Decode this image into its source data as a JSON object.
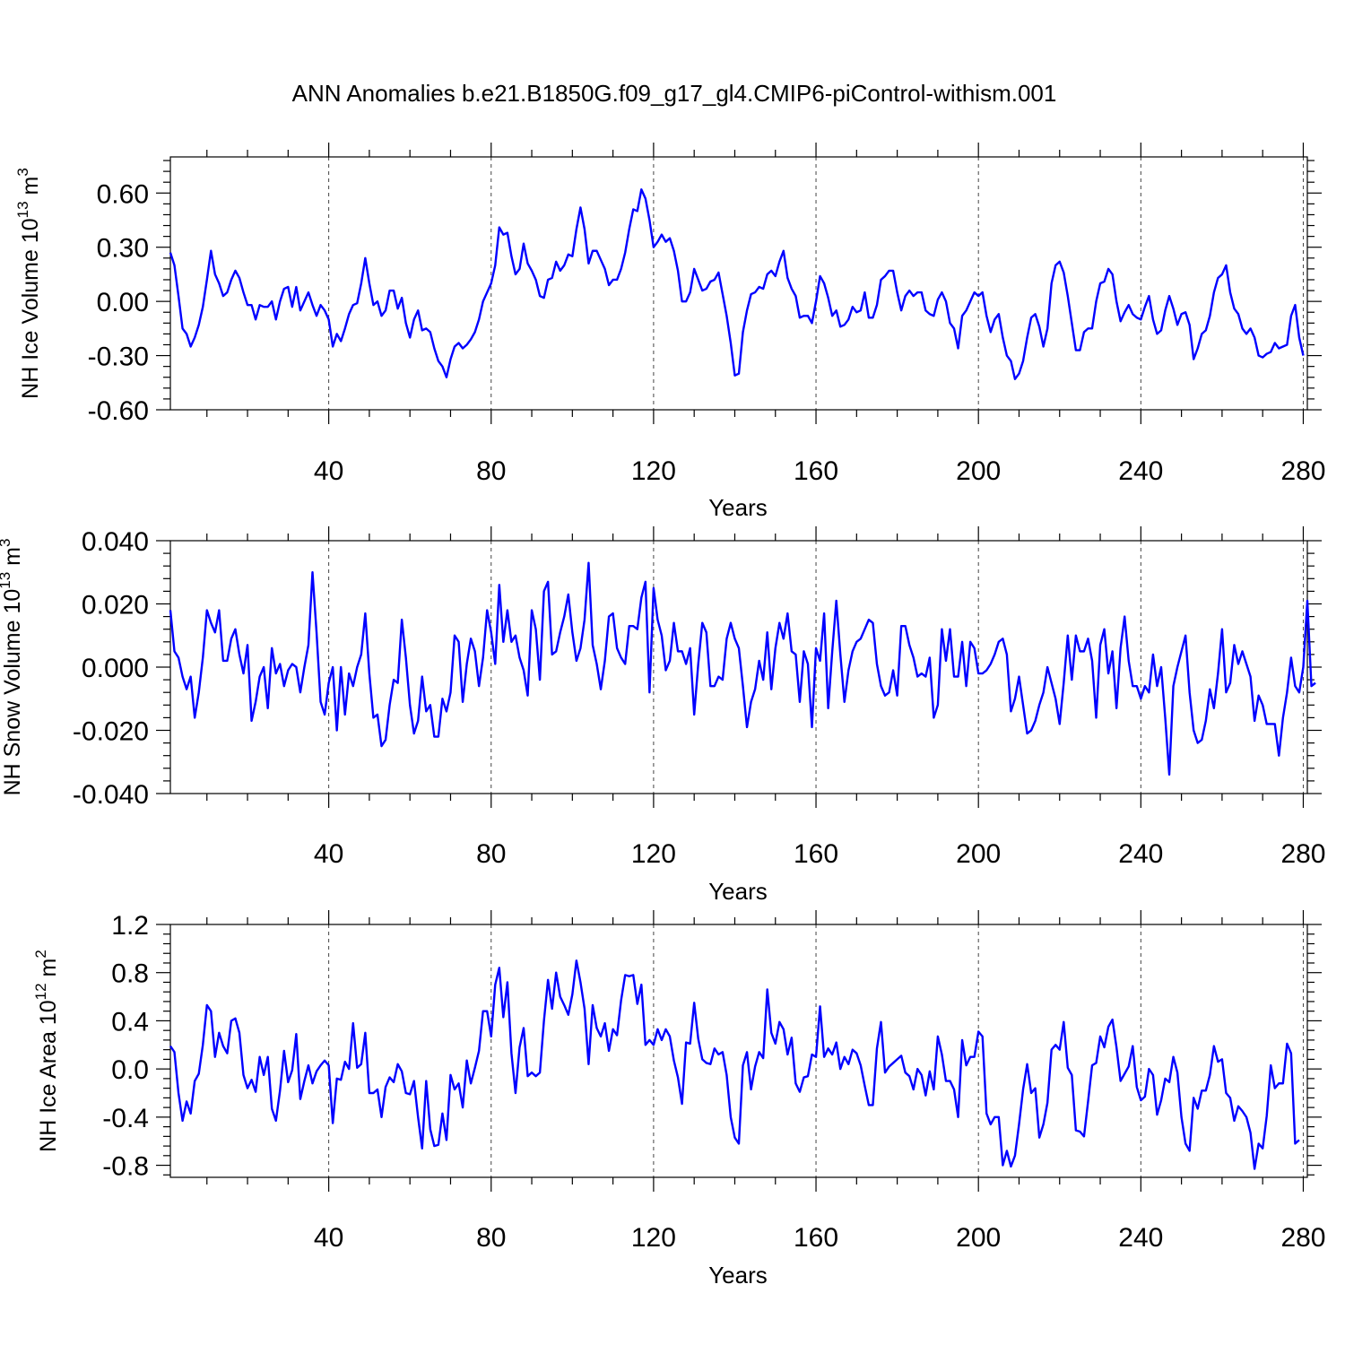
{
  "figure_title": "ANN Anomalies b.e21.B1850G.f09_g17_gl4.CMIP6-piControl-withism.001",
  "line_color": "#0000ff",
  "chart_data": [
    {
      "type": "line",
      "ylabel_main": "NH Ice Volume 10",
      "ylabel_sup": "13",
      "ylabel_unit": " m",
      "ylabel_unit_sup": "3",
      "xlabel": "Years",
      "xlim": [
        1,
        281
      ],
      "ylim": [
        -0.6,
        0.8
      ],
      "xticks": [
        40,
        80,
        120,
        160,
        200,
        240,
        280
      ],
      "xtick_labels": [
        "40",
        "80",
        "120",
        "160",
        "200",
        "240",
        "280"
      ],
      "yticks": [
        -0.6,
        -0.3,
        0.0,
        0.3,
        0.6
      ],
      "ytick_labels": [
        "-0.60",
        "-0.30",
        "0.00",
        "0.30",
        "0.60"
      ],
      "grid": "vertical dashed at x ticks",
      "series": [
        {
          "x_start": 1,
          "values": [
            0.27,
            0.2,
            0.03,
            -0.15,
            -0.18,
            -0.25,
            -0.2,
            -0.13,
            -0.03,
            0.12,
            0.28,
            0.15,
            0.1,
            0.03,
            0.05,
            0.12,
            0.17,
            0.13,
            0.05,
            -0.02,
            -0.02,
            -0.1,
            -0.02,
            -0.03,
            -0.03,
            0.0,
            -0.1,
            0.0,
            0.07,
            0.08,
            -0.03,
            0.08,
            -0.05,
            0.0,
            0.05,
            -0.02,
            -0.08,
            -0.02,
            -0.05,
            -0.1,
            -0.25,
            -0.18,
            -0.22,
            -0.15,
            -0.07,
            -0.02,
            -0.01,
            0.1,
            0.24,
            0.1,
            -0.02,
            0.0,
            -0.08,
            -0.05,
            0.06,
            0.06,
            -0.04,
            0.02,
            -0.12,
            -0.2,
            -0.1,
            -0.05,
            -0.16,
            -0.15,
            -0.17,
            -0.26,
            -0.33,
            -0.36,
            -0.42,
            -0.32,
            -0.25,
            -0.23,
            -0.26,
            -0.24,
            -0.21,
            -0.17,
            -0.1,
            0.0,
            0.05,
            0.1,
            0.2,
            0.41,
            0.37,
            0.38,
            0.25,
            0.15,
            0.18,
            0.32,
            0.21,
            0.17,
            0.12,
            0.03,
            0.02,
            0.12,
            0.13,
            0.22,
            0.17,
            0.2,
            0.26,
            0.25,
            0.4,
            0.52,
            0.4,
            0.21,
            0.28,
            0.28,
            0.23,
            0.18,
            0.09,
            0.12,
            0.12,
            0.18,
            0.27,
            0.4,
            0.51,
            0.5,
            0.62,
            0.57,
            0.45,
            0.3,
            0.33,
            0.37,
            0.33,
            0.35,
            0.28,
            0.17,
            0.0,
            0.0,
            0.05,
            0.18,
            0.12,
            0.06,
            0.07,
            0.11,
            0.12,
            0.16,
            0.04,
            -0.08,
            -0.23,
            -0.41,
            -0.4,
            -0.17,
            -0.05,
            0.04,
            0.05,
            0.08,
            0.07,
            0.15,
            0.17,
            0.14,
            0.22,
            0.28,
            0.13,
            0.07,
            0.03,
            -0.09,
            -0.08,
            -0.08,
            -0.12,
            0.0,
            0.14,
            0.1,
            0.02,
            -0.08,
            -0.05,
            -0.14,
            -0.13,
            -0.1,
            -0.03,
            -0.06,
            -0.05,
            0.05,
            -0.09,
            -0.09,
            -0.02,
            0.12,
            0.14,
            0.17,
            0.17,
            0.05,
            -0.05,
            0.03,
            0.06,
            0.03,
            0.05,
            0.05,
            -0.05,
            -0.07,
            -0.08,
            0.01,
            0.05,
            0.0,
            -0.12,
            -0.15,
            -0.26,
            -0.08,
            -0.05,
            0.0,
            0.05,
            0.03,
            0.05,
            -0.08,
            -0.17,
            -0.1,
            -0.07,
            -0.2,
            -0.3,
            -0.33,
            -0.43,
            -0.4,
            -0.33,
            -0.2,
            -0.09,
            -0.07,
            -0.14,
            -0.25,
            -0.15,
            0.1,
            0.2,
            0.22,
            0.16,
            0.03,
            -0.12,
            -0.27,
            -0.27,
            -0.17,
            -0.15,
            -0.15,
            0.0,
            0.1,
            0.11,
            0.18,
            0.15,
            0.0,
            -0.11,
            -0.06,
            -0.02,
            -0.07,
            -0.09,
            -0.1,
            -0.03,
            0.03,
            -0.1,
            -0.18,
            -0.16,
            -0.05,
            0.03,
            -0.04,
            -0.13,
            -0.07,
            -0.06,
            -0.13,
            -0.32,
            -0.26,
            -0.18,
            -0.16,
            -0.08,
            0.05,
            0.13,
            0.15,
            0.2,
            0.05,
            -0.04,
            -0.07,
            -0.15,
            -0.18,
            -0.15,
            -0.2,
            -0.3,
            -0.31,
            -0.29,
            -0.28,
            -0.23,
            -0.26,
            -0.25,
            -0.24,
            -0.08,
            -0.02,
            -0.2,
            -0.3
          ]
        }
      ]
    },
    {
      "type": "line",
      "ylabel_main": "NH Snow Volume 10",
      "ylabel_sup": "13",
      "ylabel_unit": " m",
      "ylabel_unit_sup": "3",
      "xlabel": "Years",
      "xlim": [
        1,
        281
      ],
      "ylim": [
        -0.04,
        0.04
      ],
      "xticks": [
        40,
        80,
        120,
        160,
        200,
        240,
        280
      ],
      "xtick_labels": [
        "40",
        "80",
        "120",
        "160",
        "200",
        "240",
        "280"
      ],
      "yticks": [
        -0.04,
        -0.02,
        0.0,
        0.02,
        0.04
      ],
      "ytick_labels": [
        "-0.040",
        "-0.020",
        "0.000",
        "0.020",
        "0.040"
      ],
      "grid": "vertical dashed at x ticks",
      "series": [
        {
          "x_start": 1,
          "values": [
            0.018,
            0.005,
            0.003,
            -0.003,
            -0.007,
            -0.003,
            -0.016,
            -0.008,
            0.003,
            0.018,
            0.014,
            0.011,
            0.018,
            0.002,
            0.002,
            0.009,
            0.012,
            0.004,
            -0.002,
            0.007,
            -0.017,
            -0.011,
            -0.003,
            0.0,
            -0.013,
            0.006,
            -0.002,
            0.001,
            -0.006,
            -0.001,
            0.001,
            0.0,
            -0.008,
            0.0,
            0.007,
            0.03,
            0.011,
            -0.011,
            -0.015,
            -0.005,
            0.0,
            -0.02,
            0.0,
            -0.015,
            -0.002,
            -0.006,
            0.0,
            0.004,
            0.017,
            -0.002,
            -0.016,
            -0.015,
            -0.025,
            -0.023,
            -0.012,
            -0.004,
            -0.005,
            0.015,
            0.003,
            -0.012,
            -0.021,
            -0.017,
            -0.003,
            -0.014,
            -0.012,
            -0.022,
            -0.022,
            -0.01,
            -0.014,
            -0.008,
            0.01,
            0.008,
            -0.011,
            0.001,
            0.009,
            0.005,
            -0.006,
            0.003,
            0.018,
            0.011,
            0.001,
            0.026,
            0.008,
            0.018,
            0.008,
            0.01,
            0.003,
            -0.001,
            -0.009,
            0.018,
            0.012,
            -0.004,
            0.024,
            0.027,
            0.004,
            0.005,
            0.011,
            0.016,
            0.023,
            0.011,
            0.002,
            0.006,
            0.015,
            0.033,
            0.007,
            0.001,
            -0.007,
            0.002,
            0.016,
            0.017,
            0.006,
            0.003,
            0.001,
            0.013,
            0.013,
            0.012,
            0.022,
            0.027,
            -0.008,
            0.025,
            0.015,
            0.01,
            -0.001,
            0.002,
            0.014,
            0.005,
            0.005,
            0.001,
            0.006,
            -0.015,
            0.001,
            0.014,
            0.011,
            -0.006,
            -0.006,
            -0.003,
            -0.004,
            0.009,
            0.014,
            0.009,
            0.006,
            -0.006,
            -0.019,
            -0.011,
            -0.007,
            0.002,
            -0.004,
            0.011,
            -0.007,
            0.006,
            0.014,
            0.009,
            0.017,
            0.005,
            0.004,
            -0.011,
            0.005,
            0.001,
            -0.019,
            0.006,
            0.002,
            0.017,
            -0.013,
            0.005,
            0.021,
            0.004,
            -0.011,
            -0.001,
            0.005,
            0.008,
            0.009,
            0.012,
            0.015,
            0.014,
            0.001,
            -0.006,
            -0.009,
            -0.008,
            -0.001,
            -0.009,
            0.013,
            0.013,
            0.007,
            0.003,
            -0.003,
            -0.002,
            -0.003,
            0.003,
            -0.016,
            -0.012,
            0.012,
            0.002,
            0.012,
            -0.003,
            -0.003,
            0.008,
            -0.006,
            0.008,
            0.006,
            -0.002,
            -0.002,
            -0.001,
            0.001,
            0.004,
            0.008,
            0.009,
            0.004,
            -0.014,
            -0.01,
            -0.003,
            -0.012,
            -0.021,
            -0.02,
            -0.017,
            -0.012,
            -0.008,
            0.0,
            -0.005,
            -0.01,
            -0.018,
            -0.005,
            0.01,
            -0.004,
            0.01,
            0.005,
            0.005,
            0.009,
            0.002,
            -0.016,
            0.007,
            0.012,
            -0.002,
            0.005,
            -0.013,
            0.006,
            0.016,
            0.002,
            -0.006,
            -0.006,
            -0.01,
            -0.006,
            -0.008,
            0.004,
            -0.006,
            0.0,
            -0.016,
            -0.034,
            -0.006,
            0.0,
            0.005,
            0.01,
            -0.008,
            -0.02,
            -0.024,
            -0.023,
            -0.017,
            -0.007,
            -0.013,
            -0.002,
            0.012,
            -0.008,
            -0.005,
            0.007,
            0.001,
            0.005,
            0.001,
            -0.003,
            -0.017,
            -0.009,
            -0.012,
            -0.018,
            -0.018,
            -0.018,
            -0.028,
            -0.016,
            -0.008,
            0.003,
            -0.006,
            -0.008,
            0.0,
            0.021,
            -0.006,
            -0.005
          ]
        }
      ]
    },
    {
      "type": "line",
      "ylabel_main": "NH Ice Area 10",
      "ylabel_sup": "12",
      "ylabel_unit": " m",
      "ylabel_unit_sup": "2",
      "xlabel": "Years",
      "xlim": [
        1,
        281
      ],
      "ylim": [
        -0.9,
        1.2
      ],
      "xticks": [
        40,
        80,
        120,
        160,
        200,
        240,
        280
      ],
      "xtick_labels": [
        "40",
        "80",
        "120",
        "160",
        "200",
        "240",
        "280"
      ],
      "yticks": [
        -0.8,
        -0.4,
        0.0,
        0.4,
        0.8,
        1.2
      ],
      "ytick_labels": [
        "-0.8",
        "-0.4",
        "0.0",
        "0.4",
        "0.8",
        "1.2"
      ],
      "grid": "vertical dashed at x ticks",
      "series": [
        {
          "x_start": 1,
          "values": [
            0.19,
            0.14,
            -0.2,
            -0.43,
            -0.27,
            -0.37,
            -0.1,
            -0.04,
            0.2,
            0.53,
            0.48,
            0.1,
            0.3,
            0.19,
            0.13,
            0.4,
            0.42,
            0.3,
            -0.05,
            -0.16,
            -0.09,
            -0.19,
            0.1,
            -0.05,
            0.1,
            -0.33,
            -0.43,
            -0.18,
            0.15,
            -0.11,
            -0.01,
            0.29,
            -0.25,
            -0.1,
            0.03,
            -0.12,
            -0.02,
            0.03,
            0.07,
            0.03,
            -0.45,
            -0.08,
            -0.09,
            0.06,
            0.0,
            0.38,
            0.01,
            0.04,
            0.3,
            -0.2,
            -0.2,
            -0.17,
            -0.4,
            -0.15,
            -0.07,
            -0.11,
            0.04,
            -0.02,
            -0.2,
            -0.21,
            -0.1,
            -0.4,
            -0.66,
            -0.1,
            -0.5,
            -0.64,
            -0.63,
            -0.37,
            -0.59,
            -0.05,
            -0.17,
            -0.12,
            -0.32,
            0.07,
            -0.12,
            0.01,
            0.15,
            0.48,
            0.48,
            0.27,
            0.7,
            0.84,
            0.43,
            0.72,
            0.13,
            -0.2,
            0.18,
            0.34,
            -0.06,
            -0.03,
            -0.06,
            -0.03,
            0.4,
            0.74,
            0.5,
            0.8,
            0.6,
            0.53,
            0.45,
            0.62,
            0.9,
            0.72,
            0.5,
            0.04,
            0.53,
            0.34,
            0.27,
            0.38,
            0.15,
            0.33,
            0.28,
            0.57,
            0.78,
            0.77,
            0.78,
            0.54,
            0.7,
            0.2,
            0.24,
            0.2,
            0.33,
            0.24,
            0.33,
            0.27,
            0.07,
            -0.07,
            -0.29,
            0.22,
            0.21,
            0.55,
            0.25,
            0.08,
            0.05,
            0.04,
            0.17,
            0.12,
            0.14,
            -0.05,
            -0.4,
            -0.57,
            -0.62,
            0.03,
            0.14,
            -0.17,
            0.02,
            0.14,
            0.09,
            0.66,
            0.3,
            0.21,
            0.39,
            0.33,
            0.12,
            0.26,
            -0.12,
            -0.19,
            -0.07,
            -0.06,
            0.12,
            0.1,
            0.52,
            0.1,
            0.17,
            0.12,
            0.22,
            0.0,
            0.1,
            0.04,
            0.16,
            0.13,
            0.03,
            -0.14,
            -0.3,
            -0.3,
            0.17,
            0.39,
            -0.03,
            0.02,
            0.05,
            0.08,
            0.11,
            -0.03,
            -0.06,
            -0.17,
            0.0,
            -0.05,
            -0.22,
            -0.02,
            -0.17,
            0.27,
            0.12,
            -0.1,
            -0.1,
            -0.17,
            -0.4,
            0.24,
            0.03,
            0.1,
            0.1,
            0.31,
            0.27,
            -0.37,
            -0.46,
            -0.4,
            -0.4,
            -0.8,
            -0.68,
            -0.81,
            -0.72,
            -0.46,
            -0.17,
            0.04,
            -0.2,
            -0.16,
            -0.57,
            -0.46,
            -0.28,
            0.16,
            0.2,
            0.16,
            0.39,
            0.01,
            -0.05,
            -0.51,
            -0.52,
            -0.56,
            -0.27,
            0.03,
            0.05,
            0.27,
            0.18,
            0.35,
            0.41,
            0.18,
            -0.1,
            -0.04,
            0.02,
            0.19,
            -0.15,
            -0.26,
            -0.23,
            0.0,
            -0.05,
            -0.38,
            -0.26,
            -0.08,
            -0.11,
            0.1,
            -0.03,
            -0.4,
            -0.62,
            -0.68,
            -0.24,
            -0.33,
            -0.18,
            -0.18,
            -0.05,
            0.19,
            0.06,
            0.08,
            -0.2,
            -0.24,
            -0.43,
            -0.31,
            -0.35,
            -0.4,
            -0.53,
            -0.83,
            -0.62,
            -0.66,
            -0.39,
            0.03,
            -0.16,
            -0.12,
            -0.12,
            0.21,
            0.13,
            -0.62,
            -0.59
          ]
        }
      ]
    }
  ]
}
